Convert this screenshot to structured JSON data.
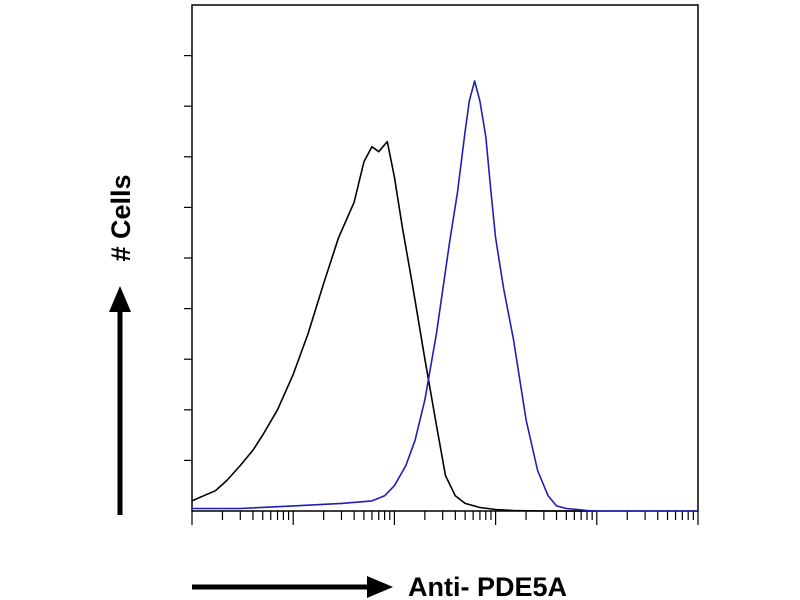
{
  "chart_data": {
    "type": "line",
    "xlabel": "Anti- PDE5A",
    "ylabel": "# Cells",
    "x_scale": "log",
    "xlim": [
      1,
      100000
    ],
    "ylim": [
      0,
      100
    ],
    "grid": false,
    "legend": "none",
    "series": [
      {
        "color": "#000000",
        "x": [
          1,
          1.3,
          1.7,
          2.2,
          3,
          4,
          5,
          7,
          10,
          14,
          20,
          28,
          40,
          50,
          60,
          70,
          85,
          100,
          120,
          150,
          200,
          260,
          320,
          400,
          500,
          700,
          1000,
          1500,
          3000,
          10000
        ],
        "y": [
          2,
          3,
          4,
          6,
          9,
          12,
          15,
          20,
          27,
          35,
          45,
          54,
          61,
          69,
          72,
          71,
          73,
          66,
          56,
          45,
          30,
          17,
          7,
          3,
          1.5,
          0.7,
          0.3,
          0.1,
          0,
          0
        ]
      },
      {
        "color": "#1f1fb4",
        "x": [
          1,
          3,
          10,
          30,
          60,
          80,
          100,
          130,
          160,
          200,
          260,
          350,
          420,
          500,
          550,
          620,
          700,
          800,
          900,
          1000,
          1200,
          1500,
          2000,
          2600,
          3300,
          4000,
          5000,
          6500,
          8000,
          10000,
          100000
        ],
        "y": [
          0.5,
          0.5,
          1,
          1.5,
          2,
          3,
          5,
          9,
          14,
          22,
          35,
          53,
          63,
          75,
          81,
          85,
          81,
          74,
          63,
          54,
          44,
          34,
          18,
          8,
          3,
          1,
          0.5,
          0.3,
          0.1,
          0,
          0
        ]
      }
    ]
  }
}
